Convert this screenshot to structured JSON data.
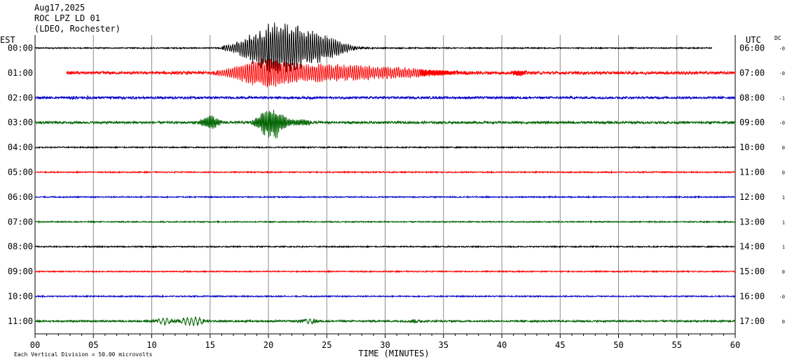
{
  "header": {
    "date": "Aug17,2025",
    "station": "ROC LPZ LD 01",
    "network": "(LDEO, Rochester)"
  },
  "left_axis_title": "EST",
  "right_axis_title": "UTC",
  "dc_label": "DC",
  "footer_left": "Each Vertical Division = 50.00 microvolts",
  "chart_data": {
    "type": "line",
    "xlabel": "TIME (MINUTES)",
    "xlim": [
      0,
      60
    ],
    "x_ticks": [
      "00",
      "05",
      "10",
      "15",
      "20",
      "25",
      "30",
      "35",
      "40",
      "45",
      "50",
      "55",
      "60"
    ],
    "grid": true,
    "trace_colors": [
      "#000000",
      "#ff0000",
      "#0000c8",
      "#006400"
    ],
    "rows": [
      {
        "est": "00:00",
        "utc": "06:00",
        "dc": "-0",
        "color": "#000000",
        "start_min": 0,
        "end_min": 58
      },
      {
        "est": "01:00",
        "utc": "07:00",
        "dc": "-0",
        "color": "#ff0000",
        "start_min": 2.7,
        "end_min": 60
      },
      {
        "est": "02:00",
        "utc": "08:00",
        "dc": "-1",
        "color": "#0000c8",
        "start_min": 0,
        "end_min": 60
      },
      {
        "est": "03:00",
        "utc": "09:00",
        "dc": "-0",
        "color": "#006400",
        "start_min": 0,
        "end_min": 60
      },
      {
        "est": "04:00",
        "utc": "10:00",
        "dc": "0",
        "color": "#000000",
        "start_min": 0,
        "end_min": 60
      },
      {
        "est": "05:00",
        "utc": "11:00",
        "dc": "0",
        "color": "#ff0000",
        "start_min": 0,
        "end_min": 60
      },
      {
        "est": "06:00",
        "utc": "12:00",
        "dc": "1",
        "color": "#0000c8",
        "start_min": 0,
        "end_min": 60
      },
      {
        "est": "07:00",
        "utc": "13:00",
        "dc": "1",
        "color": "#006400",
        "start_min": 0,
        "end_min": 60
      },
      {
        "est": "08:00",
        "utc": "14:00",
        "dc": "1",
        "color": "#000000",
        "start_min": 0,
        "end_min": 60
      },
      {
        "est": "09:00",
        "utc": "15:00",
        "dc": "0",
        "color": "#ff0000",
        "start_min": 0,
        "end_min": 60
      },
      {
        "est": "10:00",
        "utc": "16:00",
        "dc": "-0",
        "color": "#0000c8",
        "start_min": 0,
        "end_min": 60
      },
      {
        "est": "11:00",
        "utc": "17:00",
        "dc": "0",
        "color": "#006400",
        "start_min": 0,
        "end_min": 60
      }
    ]
  }
}
